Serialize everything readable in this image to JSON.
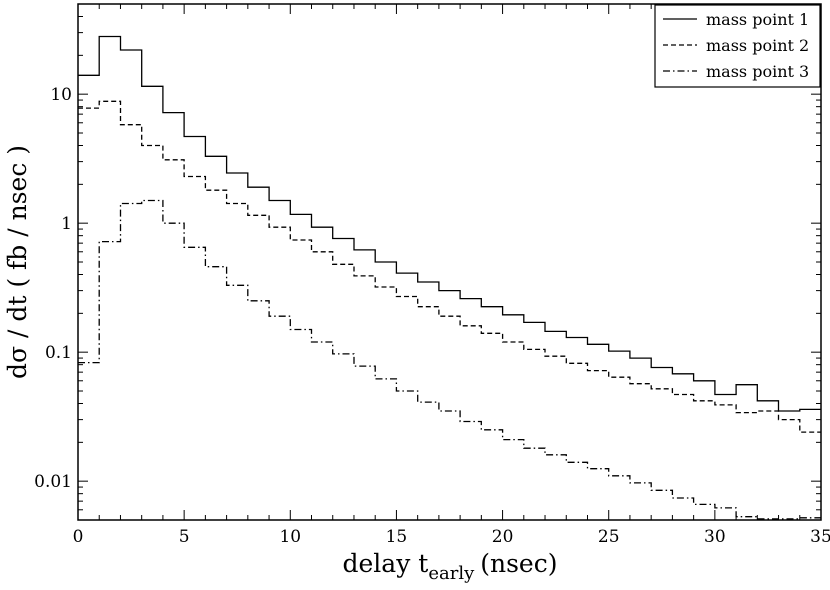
{
  "chart_data": {
    "type": "line",
    "style": "step-histogram",
    "xlabel": "delay t",
    "xlabel_sub": "early",
    "xlabel_unit": "(nsec)",
    "ylabel": "dσ / dt ( fb / nsec )",
    "xlim": [
      0,
      35
    ],
    "ylim": [
      0.005,
      50
    ],
    "yscale": "log",
    "grid": false,
    "legend_position": "top-right",
    "bin_edges": [
      0,
      1,
      2,
      3,
      4,
      5,
      6,
      7,
      8,
      9,
      10,
      11,
      12,
      13,
      14,
      15,
      16,
      17,
      18,
      19,
      20,
      21,
      22,
      23,
      24,
      25,
      26,
      27,
      28,
      29,
      30,
      31,
      32,
      33,
      34,
      35
    ],
    "x_ticks": [
      0,
      5,
      10,
      15,
      20,
      25,
      30,
      35
    ],
    "x_tick_labels": [
      "0",
      "5",
      "10",
      "15",
      "20",
      "25",
      "30",
      "35"
    ],
    "y_ticks": [
      0.01,
      0.1,
      1,
      10
    ],
    "y_tick_labels": [
      "0.01",
      "0.1",
      "1",
      "10"
    ],
    "series": [
      {
        "name": "mass point 1",
        "dash": "solid",
        "values": [
          14,
          28,
          22,
          11.5,
          7.2,
          4.7,
          3.3,
          2.45,
          1.9,
          1.5,
          1.17,
          0.93,
          0.76,
          0.62,
          0.5,
          0.41,
          0.35,
          0.3,
          0.26,
          0.225,
          0.195,
          0.17,
          0.145,
          0.13,
          0.115,
          0.102,
          0.09,
          0.076,
          0.068,
          0.06,
          0.047,
          0.056,
          0.042,
          0.035,
          0.036
        ]
      },
      {
        "name": "mass point 2",
        "dash": "dashed",
        "values": [
          7.8,
          8.8,
          5.8,
          4.0,
          3.1,
          2.3,
          1.8,
          1.42,
          1.15,
          0.93,
          0.74,
          0.6,
          0.48,
          0.39,
          0.32,
          0.27,
          0.225,
          0.19,
          0.16,
          0.14,
          0.12,
          0.105,
          0.093,
          0.082,
          0.072,
          0.064,
          0.057,
          0.052,
          0.047,
          0.042,
          0.039,
          0.034,
          0.035,
          0.03,
          0.024
        ]
      },
      {
        "name": "mass point 3",
        "dash": "dashdot",
        "values": [
          0.083,
          0.72,
          1.42,
          1.5,
          1.0,
          0.65,
          0.46,
          0.33,
          0.25,
          0.19,
          0.15,
          0.12,
          0.097,
          0.078,
          0.062,
          0.05,
          0.041,
          0.035,
          0.029,
          0.025,
          0.021,
          0.018,
          0.016,
          0.014,
          0.0125,
          0.011,
          0.0097,
          0.0085,
          0.0074,
          0.0066,
          0.0062,
          0.0053,
          0.0051,
          0.0051,
          0.0052
        ]
      }
    ]
  }
}
